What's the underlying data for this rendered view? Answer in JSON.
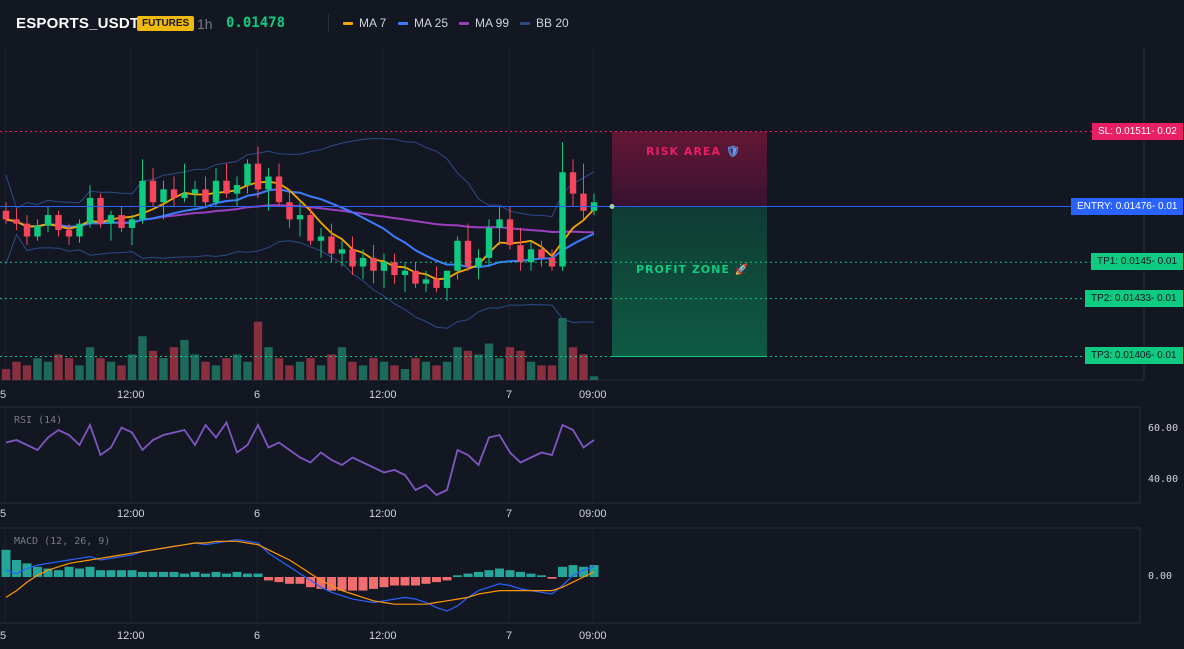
{
  "header": {
    "symbol": "ESPORTS_USDT",
    "badge": "FUTURES",
    "timeframe": "1h",
    "last_price": "0.01478",
    "legend": [
      {
        "label": "MA 7",
        "color": "#f7a600"
      },
      {
        "label": "MA 25",
        "color": "#3c7cff"
      },
      {
        "label": "MA 99",
        "color": "#9b3fbf"
      },
      {
        "label": "BB 20",
        "color": "#2e4a8a"
      }
    ]
  },
  "zones": {
    "risk_label": "RISK AREA",
    "profit_label": "PROFIT ZONE"
  },
  "levels": [
    {
      "id": "sl",
      "label": "SL: 0.01511",
      "suffix": "0.02",
      "price": 0.01511,
      "bg": "#e91e63",
      "fg": "#ffffff",
      "line": "#e91e63"
    },
    {
      "id": "entry",
      "label": "ENTRY: 0.01476",
      "suffix": "0.01",
      "price": 0.01476,
      "bg": "#2962ff",
      "fg": "#ffffff",
      "line": "#2962ff"
    },
    {
      "id": "tp1",
      "label": "TP1: 0.0145",
      "suffix": "0.01",
      "price": 0.0145,
      "bg": "#0ecb81",
      "fg": "#131722",
      "line": "#0ecb81"
    },
    {
      "id": "tp2",
      "label": "TP2: 0.01433",
      "suffix": "0.01",
      "price": 0.01433,
      "bg": "#0ecb81",
      "fg": "#131722",
      "line": "#0ecb81"
    },
    {
      "id": "tp3",
      "label": "TP3: 0.01406",
      "suffix": "0.01",
      "price": 0.01406,
      "bg": "#0ecb81",
      "fg": "#131722",
      "line": "#0ecb81"
    }
  ],
  "x_ticks": [
    "5",
    "12:00",
    "6",
    "12:00",
    "7",
    "09:00"
  ],
  "panels": {
    "rsi_label": "RSI (14)",
    "rsi_ticks": [
      "60.00",
      "40.00"
    ],
    "macd_label": "MACD (12, 26, 9)",
    "macd_ticks": [
      "0.00"
    ]
  },
  "colors": {
    "up": "#0ecb81",
    "down": "#f6465d",
    "ma7": "#f7a600",
    "ma25": "#3c7cff",
    "ma99": "#9b3fbf",
    "bb": "#2e4a8a",
    "rsi": "#7e57c2",
    "macd": "#2962ff",
    "signal": "#ff9800"
  },
  "chart_data": [
    {
      "type": "candlestick",
      "title": "ESPORTS_USDT 1h",
      "x_tick_labels": [
        "5",
        "12:00",
        "6",
        "12:00",
        "7",
        "09:00"
      ],
      "ylim": [
        0.01395,
        0.0155
      ],
      "candles_ohlc": [
        [
          0.01474,
          0.01478,
          0.01468,
          0.0147
        ],
        [
          0.0147,
          0.01475,
          0.01465,
          0.01468
        ],
        [
          0.01468,
          0.01472,
          0.01458,
          0.01462
        ],
        [
          0.01462,
          0.0147,
          0.0146,
          0.01467
        ],
        [
          0.01467,
          0.01476,
          0.01464,
          0.01472
        ],
        [
          0.01472,
          0.01474,
          0.01462,
          0.01465
        ],
        [
          0.01465,
          0.01468,
          0.01458,
          0.01462
        ],
        [
          0.01462,
          0.0147,
          0.01459,
          0.01468
        ],
        [
          0.01468,
          0.01486,
          0.01466,
          0.0148
        ],
        [
          0.0148,
          0.01482,
          0.01466,
          0.01468
        ],
        [
          0.01468,
          0.01474,
          0.0146,
          0.01472
        ],
        [
          0.01472,
          0.01476,
          0.01464,
          0.01466
        ],
        [
          0.01466,
          0.01472,
          0.01458,
          0.0147
        ],
        [
          0.0147,
          0.01498,
          0.01468,
          0.01488
        ],
        [
          0.01488,
          0.01494,
          0.01476,
          0.01478
        ],
        [
          0.01478,
          0.01488,
          0.0147,
          0.01484
        ],
        [
          0.01484,
          0.0149,
          0.01476,
          0.0148
        ],
        [
          0.0148,
          0.01496,
          0.01478,
          0.01482
        ],
        [
          0.01482,
          0.01488,
          0.01476,
          0.01484
        ],
        [
          0.01484,
          0.0149,
          0.01476,
          0.01478
        ],
        [
          0.01478,
          0.01494,
          0.01476,
          0.01488
        ],
        [
          0.01488,
          0.01496,
          0.0148,
          0.01482
        ],
        [
          0.01482,
          0.0149,
          0.01476,
          0.01486
        ],
        [
          0.01486,
          0.01498,
          0.01482,
          0.01496
        ],
        [
          0.01496,
          0.01504,
          0.0148,
          0.01484
        ],
        [
          0.01484,
          0.01494,
          0.01474,
          0.0149
        ],
        [
          0.0149,
          0.01496,
          0.01476,
          0.01478
        ],
        [
          0.01478,
          0.01484,
          0.01466,
          0.0147
        ],
        [
          0.0147,
          0.01478,
          0.01462,
          0.01472
        ],
        [
          0.01472,
          0.01476,
          0.01458,
          0.0146
        ],
        [
          0.0146,
          0.01466,
          0.01452,
          0.01462
        ],
        [
          0.01462,
          0.01468,
          0.0145,
          0.01454
        ],
        [
          0.01454,
          0.0146,
          0.01448,
          0.01456
        ],
        [
          0.01456,
          0.01462,
          0.01444,
          0.01448
        ],
        [
          0.01448,
          0.01456,
          0.01442,
          0.01452
        ],
        [
          0.01452,
          0.01458,
          0.0144,
          0.01446
        ],
        [
          0.01446,
          0.01454,
          0.01438,
          0.0145
        ],
        [
          0.0145,
          0.01454,
          0.0144,
          0.01444
        ],
        [
          0.01444,
          0.0145,
          0.01436,
          0.01446
        ],
        [
          0.01446,
          0.0145,
          0.01438,
          0.0144
        ],
        [
          0.0144,
          0.01446,
          0.01436,
          0.01442
        ],
        [
          0.01442,
          0.01448,
          0.01436,
          0.01438
        ],
        [
          0.01438,
          0.01444,
          0.01432,
          0.01446
        ],
        [
          0.01446,
          0.01462,
          0.01442,
          0.0146
        ],
        [
          0.0146,
          0.01468,
          0.01446,
          0.01448
        ],
        [
          0.01448,
          0.01456,
          0.01442,
          0.01452
        ],
        [
          0.01452,
          0.0147,
          0.01448,
          0.01466
        ],
        [
          0.01466,
          0.01476,
          0.01458,
          0.0147
        ],
        [
          0.0147,
          0.01476,
          0.01456,
          0.01458
        ],
        [
          0.01458,
          0.01466,
          0.01446,
          0.0145
        ],
        [
          0.0145,
          0.0146,
          0.01446,
          0.01456
        ],
        [
          0.01456,
          0.0146,
          0.01448,
          0.01452
        ],
        [
          0.01452,
          0.01456,
          0.01446,
          0.01448
        ],
        [
          0.01448,
          0.01506,
          0.01446,
          0.01492
        ],
        [
          0.01492,
          0.01498,
          0.01476,
          0.01482
        ],
        [
          0.01482,
          0.01496,
          0.0147,
          0.01474
        ],
        [
          0.01474,
          0.01482,
          0.01472,
          0.01478
        ]
      ],
      "volume": [
        3,
        5,
        4,
        6,
        5,
        7,
        6,
        4,
        9,
        6,
        5,
        4,
        7,
        12,
        8,
        6,
        9,
        11,
        7,
        5,
        4,
        6,
        7,
        5,
        16,
        9,
        6,
        4,
        5,
        6,
        4,
        7,
        9,
        5,
        4,
        6,
        5,
        4,
        3,
        6,
        5,
        4,
        5,
        9,
        8,
        7,
        10,
        6,
        9,
        8,
        5,
        4,
        4,
        17,
        9,
        7,
        1
      ],
      "rsi": [
        55,
        56,
        54,
        52,
        57,
        60,
        58,
        54,
        62,
        50,
        53,
        61,
        59,
        52,
        56,
        58,
        59,
        60,
        54,
        62,
        57,
        63,
        51,
        54,
        62,
        53,
        55,
        52,
        49,
        47,
        51,
        48,
        46,
        49,
        47,
        45,
        43,
        44,
        42,
        36,
        38,
        34,
        36,
        52,
        50,
        46,
        57,
        58,
        51,
        47,
        49,
        51,
        50,
        62,
        60,
        53,
        56
      ],
      "macd": [
        0.4,
        0.2,
        0.5,
        0.7,
        0.8,
        0.9,
        1.0,
        1.1,
        1.2,
        1.0,
        1.1,
        1.2,
        1.3,
        1.5,
        1.6,
        1.7,
        1.8,
        1.9,
        2.0,
        1.9,
        2.0,
        2.1,
        2.2,
        2.1,
        2.0,
        1.4,
        1.0,
        0.6,
        0.2,
        -0.2,
        -0.6,
        -0.9,
        -1.1,
        -1.3,
        -1.4,
        -1.5,
        -1.4,
        -1.3,
        -1.2,
        -1.3,
        -1.5,
        -1.8,
        -2.0,
        -1.7,
        -1.2,
        -0.8,
        -0.6,
        -0.4,
        -0.5,
        -0.7,
        -0.8,
        -0.9,
        -1.0,
        -0.5,
        0.1,
        0.4,
        0.6
      ],
      "macd_signal": [
        -1.2,
        -0.8,
        -0.3,
        0.1,
        0.4,
        0.6,
        0.8,
        0.9,
        1.0,
        1.1,
        1.2,
        1.3,
        1.4,
        1.5,
        1.6,
        1.7,
        1.8,
        1.9,
        2.0,
        2.0,
        2.1,
        2.1,
        2.1,
        2.0,
        1.9,
        1.6,
        1.3,
        1.0,
        0.6,
        0.2,
        -0.2,
        -0.5,
        -0.8,
        -1.0,
        -1.2,
        -1.4,
        -1.5,
        -1.6,
        -1.6,
        -1.6,
        -1.6,
        -1.5,
        -1.4,
        -1.3,
        -1.2,
        -1.0,
        -0.9,
        -0.8,
        -0.8,
        -0.8,
        -0.8,
        -0.8,
        -0.8,
        -0.6,
        -0.3,
        0.0,
        0.3
      ],
      "macd_hist": [
        1.6,
        1.0,
        0.8,
        0.6,
        0.5,
        0.4,
        0.6,
        0.5,
        0.6,
        0.4,
        0.4,
        0.4,
        0.4,
        0.3,
        0.3,
        0.3,
        0.3,
        0.2,
        0.3,
        0.2,
        0.3,
        0.2,
        0.3,
        0.2,
        0.2,
        -0.2,
        -0.3,
        -0.4,
        -0.4,
        -0.6,
        -0.7,
        -0.8,
        -0.8,
        -0.8,
        -0.8,
        -0.7,
        -0.6,
        -0.5,
        -0.5,
        -0.5,
        -0.4,
        -0.3,
        -0.2,
        0.1,
        0.2,
        0.3,
        0.4,
        0.5,
        0.4,
        0.3,
        0.2,
        0.1,
        -0.1,
        0.6,
        0.7,
        0.6,
        0.7
      ]
    }
  ]
}
